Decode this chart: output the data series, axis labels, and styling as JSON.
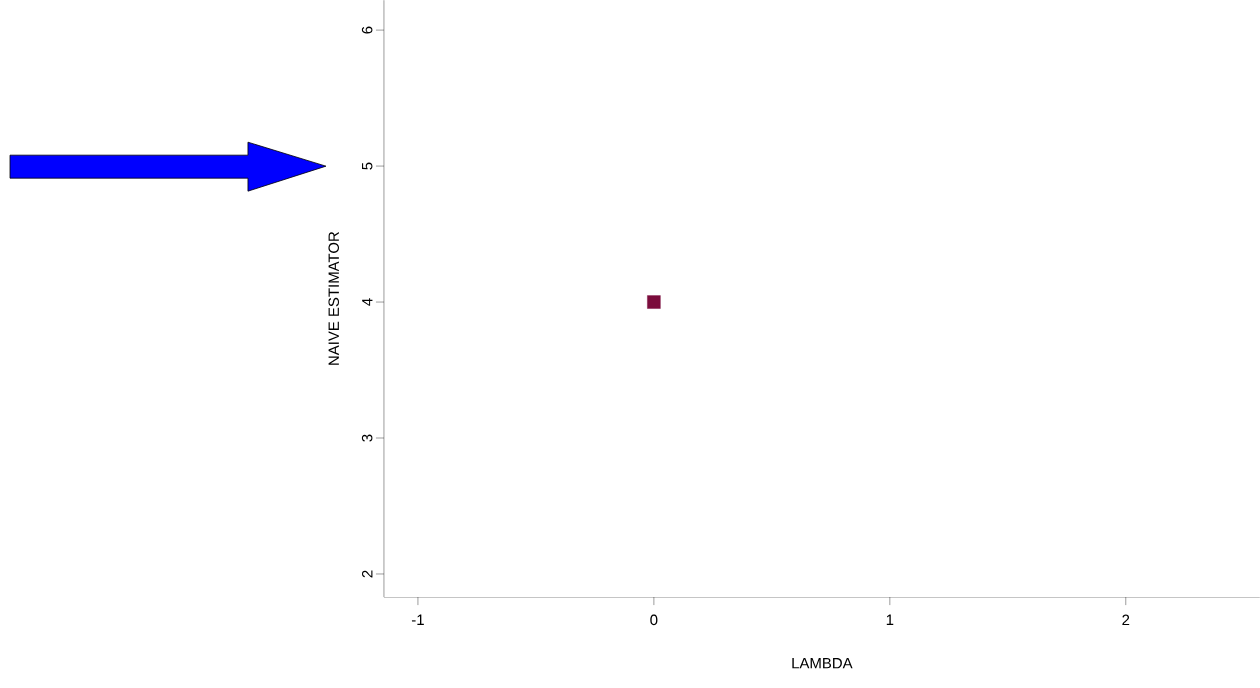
{
  "chart_data": {
    "type": "scatter",
    "xlabel": "LAMBDA",
    "ylabel": "NAIVE ESTIMATOR",
    "x": [
      0
    ],
    "values": [
      4.0
    ],
    "color": "#7b0c3c",
    "marker": "square",
    "xlim": [
      -1.144,
      2.568
    ],
    "ylim": [
      1.83,
      6.22
    ],
    "xticks": [
      -1,
      0,
      1,
      2
    ],
    "yticks": [
      2,
      3,
      4,
      5,
      6
    ]
  }
}
